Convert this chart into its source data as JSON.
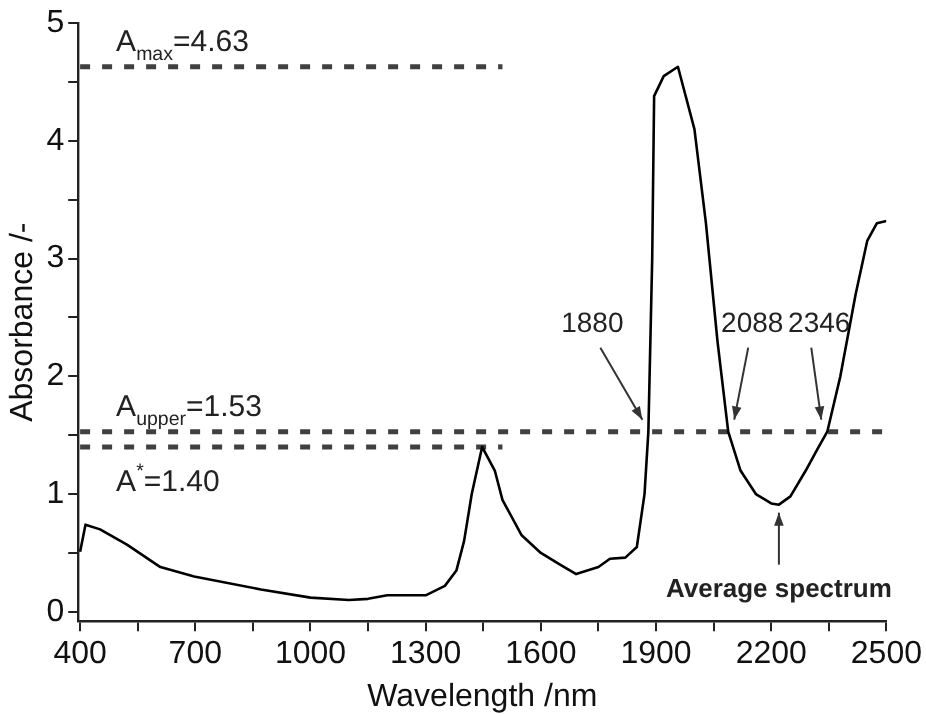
{
  "chart_data": {
    "type": "line",
    "xlabel": "Wavelength /nm",
    "ylabel": "Absorbance /-",
    "xlim": [
      395,
      2500
    ],
    "ylim": [
      -0.08,
      5
    ],
    "xticks": [
      400,
      {
        "value": 550,
        "label": null
      },
      700,
      {
        "value": 850,
        "label": null
      },
      1000,
      {
        "value": 1150,
        "label": null
      },
      1300,
      {
        "value": 1450,
        "label": null
      },
      1600,
      {
        "value": 1750,
        "label": null
      },
      1900,
      {
        "value": 2050,
        "label": null
      },
      2200,
      {
        "value": 2350,
        "label": null
      },
      2500
    ],
    "yticks": [
      0,
      {
        "value": 0.5,
        "label": null
      },
      1,
      {
        "value": 1.5,
        "label": null
      },
      2,
      {
        "value": 2.5,
        "label": null
      },
      3,
      {
        "value": 3.5,
        "label": null
      },
      4,
      {
        "value": 4.5,
        "label": null
      },
      5
    ],
    "grid": false,
    "legend": false,
    "series": [
      {
        "color": "#000000",
        "line_style": "solid",
        "x": [
          400,
          414,
          452,
          522,
          609,
          697,
          871,
          1000,
          1100,
          1150,
          1200,
          1300,
          1350,
          1380,
          1400,
          1420,
          1447,
          1480,
          1500,
          1550,
          1600,
          1650,
          1692,
          1750,
          1780,
          1820,
          1850,
          1870,
          1880,
          1890,
          1895,
          1920,
          1957,
          2000,
          2030,
          2060,
          2088,
          2120,
          2160,
          2200,
          2220,
          2250,
          2290,
          2320,
          2346,
          2380,
          2420,
          2450,
          2475,
          2500
        ],
        "values": [
          0.51,
          0.74,
          0.7,
          0.57,
          0.38,
          0.3,
          0.19,
          0.12,
          0.1,
          0.11,
          0.14,
          0.14,
          0.22,
          0.35,
          0.6,
          1.0,
          1.4,
          1.2,
          0.95,
          0.65,
          0.5,
          0.4,
          0.32,
          0.38,
          0.45,
          0.46,
          0.55,
          1.0,
          1.53,
          3.0,
          4.38,
          4.55,
          4.63,
          4.1,
          3.3,
          2.3,
          1.53,
          1.2,
          1.0,
          0.92,
          0.91,
          0.98,
          1.2,
          1.38,
          1.53,
          2.0,
          2.7,
          3.15,
          3.3,
          3.32
        ]
      },
      {
        "name": "A$_{max}$=4.63",
        "color": "#404040",
        "line_style": "dashed",
        "x": [
          400,
          1500
        ],
        "values": [
          4.63,
          4.63
        ]
      },
      {
        "name": "A$_{upper}$=1.53",
        "color": "#404040",
        "line_style": "dashed",
        "x": [
          400,
          2500
        ],
        "values": [
          1.53,
          1.53
        ]
      },
      {
        "name": "A$^{*}$=1.40",
        "color": "#404040",
        "line_style": "dashed",
        "x": [
          400,
          1500
        ],
        "values": [
          1.4,
          1.4
        ]
      }
    ],
    "annotations": [
      {
        "text": "1880",
        "x": 1880,
        "y": 1.53
      },
      {
        "text": "2088",
        "x": 2088,
        "y": 1.53
      },
      {
        "text": "2346",
        "x": 2346,
        "y": 1.53
      },
      {
        "text": "Average spectrum",
        "x": 2220,
        "y": 0.91
      }
    ]
  }
}
